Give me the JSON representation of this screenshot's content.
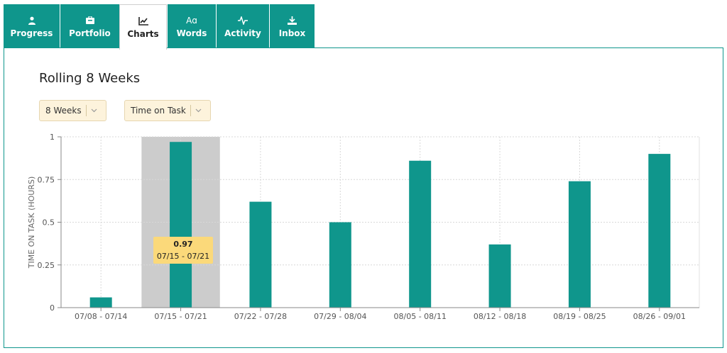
{
  "tabs": [
    {
      "label": "Progress",
      "icon": "person-icon"
    },
    {
      "label": "Portfolio",
      "icon": "briefcase-icon"
    },
    {
      "label": "Charts",
      "icon": "line-chart-icon",
      "active": true
    },
    {
      "label": "Words",
      "icon": "letters-icon"
    },
    {
      "label": "Activity",
      "icon": "pulse-icon"
    },
    {
      "label": "Inbox",
      "icon": "download-tray-icon"
    }
  ],
  "panel": {
    "title": "Rolling 8 Weeks",
    "range_select": "8 Weeks",
    "metric_select": "Time on Task"
  },
  "tooltip": {
    "value": "0.97",
    "label": "07/15 - 07/21"
  },
  "colors": {
    "accent": "#0f968c",
    "highlight": "#cccccc",
    "tooltip": "#fbd97a"
  },
  "chart_data": {
    "type": "bar",
    "categories": [
      "07/08 - 07/14",
      "07/15 - 07/21",
      "07/22 - 07/28",
      "07/29 - 08/04",
      "08/05 - 08/11",
      "08/12 - 08/18",
      "08/19 - 08/25",
      "08/26 - 09/01"
    ],
    "values": [
      0.06,
      0.97,
      0.62,
      0.5,
      0.86,
      0.37,
      0.74,
      0.9
    ],
    "ylabel": "TIME ON TASK (HOURS)",
    "xlabel": "",
    "ylim": [
      0,
      1
    ],
    "yticks": [
      0,
      0.25,
      0.5,
      0.75,
      1
    ],
    "ytick_labels": [
      "0",
      "0.25",
      "0.5",
      "0.75",
      "1"
    ],
    "highlighted_category": "07/15 - 07/21",
    "grid": true
  }
}
